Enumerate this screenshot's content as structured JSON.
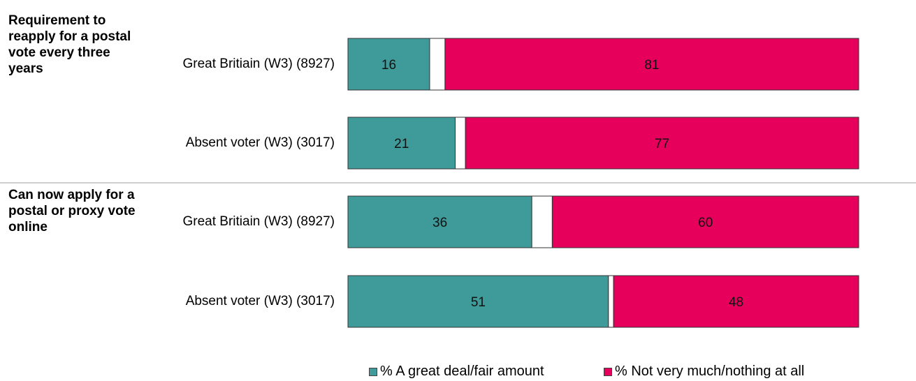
{
  "chart_data": {
    "type": "bar",
    "orientation": "horizontal",
    "stacked": true,
    "xlim": [
      0,
      100
    ],
    "groups": [
      {
        "title": "Requirement to reapply for a postal vote every three years",
        "rows": [
          {
            "label": "Great Britiain (W3) (8927)",
            "values": [
              16,
              3,
              81
            ],
            "data_labels": [
              "16",
              "",
              "81"
            ]
          },
          {
            "label": "Absent voter (W3) (3017)",
            "values": [
              21,
              2,
              77
            ],
            "data_labels": [
              "21",
              "",
              "77"
            ]
          }
        ]
      },
      {
        "title": "Can now apply for a postal or proxy vote online",
        "rows": [
          {
            "label": "Great Britiain (W3) (8927)",
            "values": [
              36,
              4,
              60
            ],
            "data_labels": [
              "36",
              "",
              "60"
            ]
          },
          {
            "label": "Absent voter (W3) (3017)",
            "values": [
              51,
              1,
              48
            ],
            "data_labels": [
              "51",
              "",
              "48"
            ]
          }
        ]
      }
    ],
    "series": [
      {
        "name": "% A great deal/fair amount",
        "color": "#3f9a9a"
      },
      {
        "name": "",
        "color": "#ffffff"
      },
      {
        "name": "% Not very much/nothing at all",
        "color": "#e6005c"
      }
    ],
    "legend": {
      "position": "bottom",
      "show_series": [
        0,
        2
      ]
    }
  }
}
